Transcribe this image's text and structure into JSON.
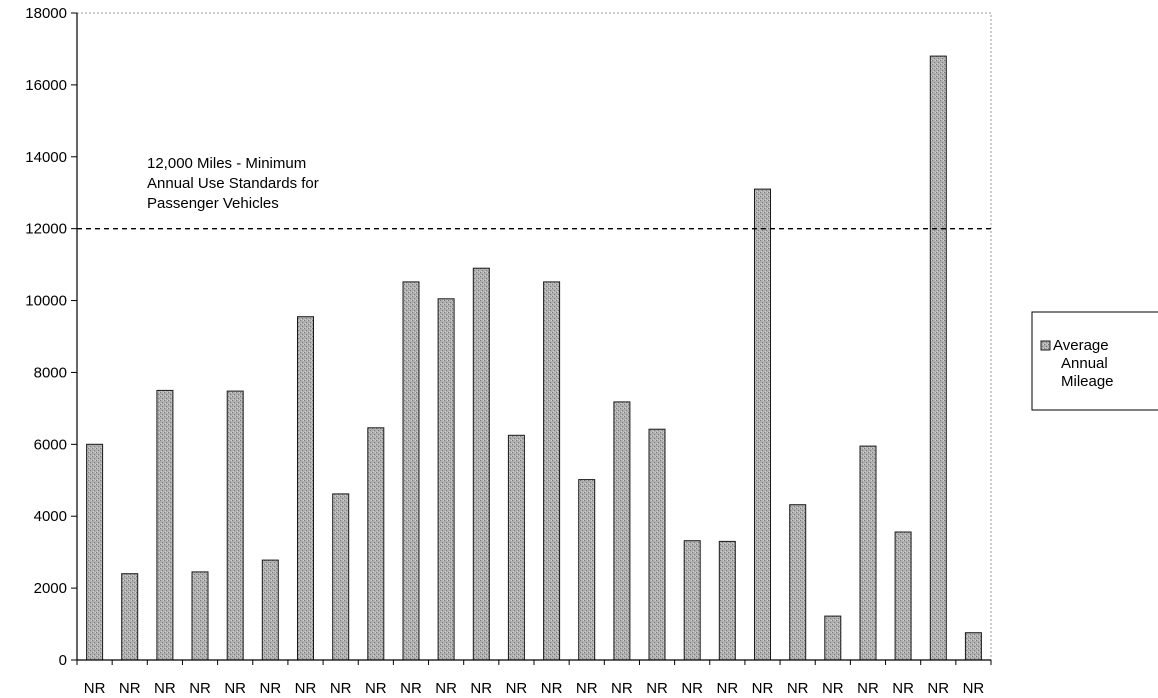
{
  "chart_data": {
    "type": "bar",
    "categories": [
      "NR",
      "NR",
      "NR",
      "NR",
      "NR",
      "NR",
      "NR",
      "NR",
      "NR",
      "NR",
      "NR",
      "NR",
      "NR",
      "NR",
      "NR",
      "NR",
      "NR",
      "NR",
      "NR",
      "NR",
      "NR",
      "NR",
      "NR",
      "NR",
      "NR",
      "NR"
    ],
    "series": [
      {
        "name": "Average Annual Mileage",
        "values": [
          6000,
          2400,
          7500,
          2450,
          7480,
          2780,
          9550,
          4620,
          6460,
          10520,
          10050,
          10900,
          6250,
          10520,
          5020,
          7180,
          6420,
          3320,
          3300,
          13100,
          4320,
          1220,
          5950,
          3560,
          16800,
          760
        ]
      }
    ],
    "ylim": [
      0,
      18000
    ],
    "yticks": [
      "0",
      "2000",
      "4000",
      "6000",
      "8000",
      "10000",
      "12000",
      "14000",
      "16000",
      "18000"
    ],
    "reference_line": {
      "value": 12000,
      "style": "dashed"
    },
    "annotation": [
      "12,000 Miles - Minimum",
      "Annual Use Standards for",
      "Passenger Vehicles"
    ],
    "legend": {
      "placement": "right",
      "label_lines": [
        "Average",
        "Annual",
        "Mileage"
      ]
    },
    "grid": false,
    "colors": {
      "bar_fill": "#a6a6a6",
      "bar_stroke": "#1a1a1a",
      "axis": "#000000"
    }
  }
}
